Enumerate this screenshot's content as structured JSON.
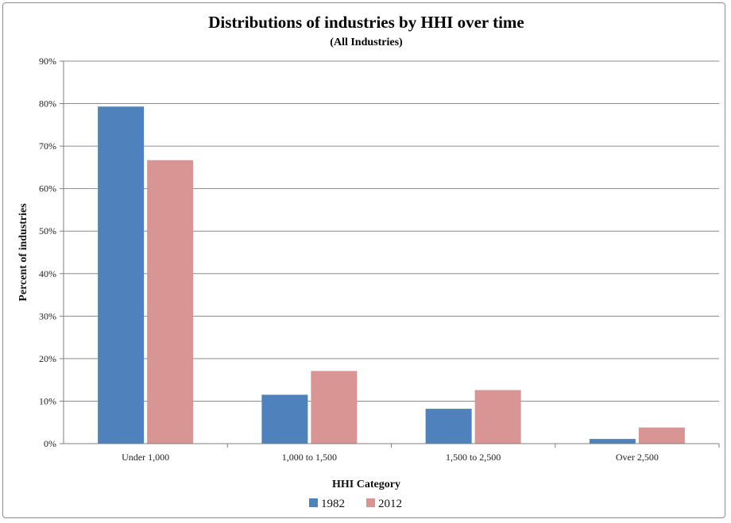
{
  "chart_data": {
    "type": "bar",
    "title": "Distributions of industries by HHI over time",
    "subtitle": "(All Industries)",
    "xlabel": "HHI Category",
    "ylabel": "Percent of industries",
    "categories": [
      "Under 1,000",
      "1,000 to 1,500",
      "1,500 to 2,500",
      "Over 2,500"
    ],
    "series": [
      {
        "name": "1982",
        "color": "#4f81bd",
        "values": [
          79.3,
          11.5,
          8.2,
          1.1
        ]
      },
      {
        "name": "2012",
        "color": "#d99594",
        "values": [
          66.7,
          17.1,
          12.6,
          3.8
        ]
      }
    ],
    "ylim": [
      0,
      90
    ],
    "yticks": [
      "0%",
      "10%",
      "20%",
      "30%",
      "40%",
      "50%",
      "60%",
      "70%",
      "80%",
      "90%"
    ],
    "grid": true,
    "legend_position": "bottom"
  }
}
